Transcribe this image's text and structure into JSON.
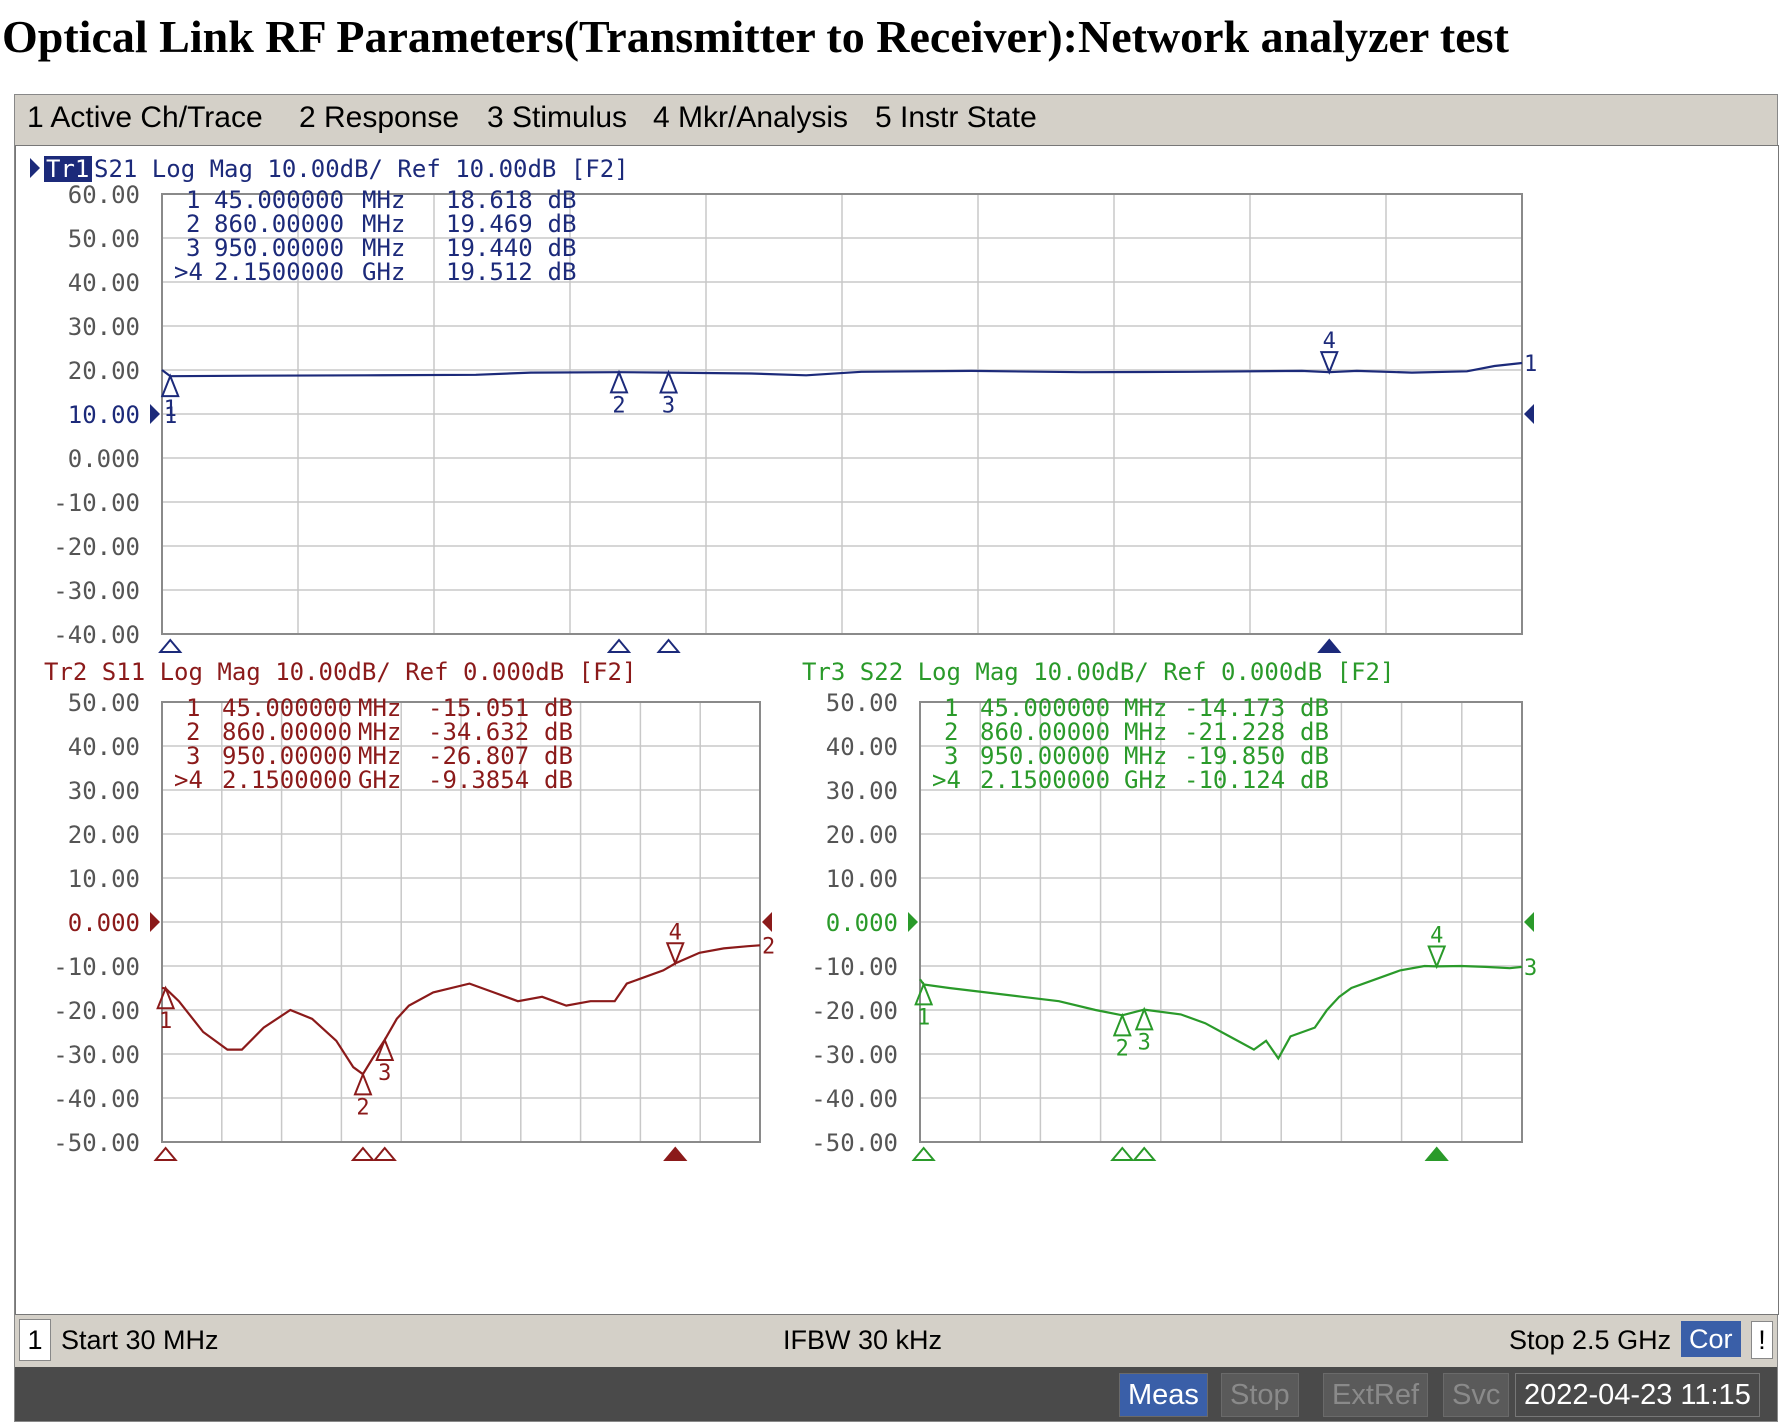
{
  "page_title": "Optical Link RF Parameters(Transmitter to Receiver):Network analyzer test",
  "menu": [
    "1 Active Ch/Trace",
    "2 Response",
    "3 Stimulus",
    "4 Mkr/Analysis",
    "5 Instr State"
  ],
  "status": {
    "channel": "1",
    "start": "Start 30 MHz",
    "ifbw": "IFBW 30 kHz",
    "stop": "Stop 2.5 GHz",
    "cor": "Cor",
    "excl": "!"
  },
  "bottom_bar": {
    "meas": "Meas",
    "stop": "Stop",
    "extref": "ExtRef",
    "svc": "Svc",
    "datetime": "2022-04-23 11:15"
  },
  "colors": {
    "tr1": "#1c2a7a",
    "tr2": "#8b1a1a",
    "tr3": "#2a9a2a",
    "grid": "#c8c8c8"
  },
  "chart_data": [
    {
      "type": "line",
      "trace_label": "Tr1",
      "header": " S21  Log Mag 10.00dB/ Ref 10.00dB [F2]",
      "x_range_mhz": [
        30,
        2500
      ],
      "ylim": [
        -40,
        60
      ],
      "y_ticks": [
        "60.00",
        "50.00",
        "40.00",
        "30.00",
        "20.00",
        "10.00",
        "0.000",
        "-10.00",
        "-20.00",
        "-30.00",
        "-40.00"
      ],
      "ref_level": 10,
      "ref_label": "1",
      "end_label": "1",
      "markers": [
        {
          "id": "1",
          "label": "1",
          "freq_mhz": 45,
          "freq": "45.000000 MHz",
          "value_db": 18.618,
          "value": "18.618 dB"
        },
        {
          "id": "2",
          "label": "2",
          "freq_mhz": 860,
          "freq": "860.00000 MHz",
          "value_db": 19.469,
          "value": "19.469 dB"
        },
        {
          "id": "3",
          "label": "3",
          "freq_mhz": 950,
          "freq": "950.00000 MHz",
          "value_db": 19.44,
          "value": "19.440 dB"
        },
        {
          "id": "4",
          "label": ">4",
          "freq_mhz": 2150,
          "freq": "2.1500000 GHz",
          "value_db": 19.512,
          "value": "19.512 dB"
        }
      ],
      "active_marker": "4",
      "series": [
        {
          "x": [
            30,
            45,
            200,
            400,
            600,
            700,
            860,
            950,
            1100,
            1200,
            1300,
            1500,
            1700,
            1900,
            2100,
            2150,
            2200,
            2300,
            2400,
            2450,
            2500
          ],
          "y": [
            20.0,
            18.6,
            18.7,
            18.8,
            18.9,
            19.4,
            19.5,
            19.4,
            19.2,
            18.8,
            19.6,
            19.8,
            19.5,
            19.6,
            19.8,
            19.5,
            19.8,
            19.4,
            19.7,
            20.9,
            21.6
          ]
        }
      ]
    },
    {
      "type": "line",
      "trace_label": "Tr2",
      "header": "Tr2  S11  Log Mag 10.00dB/ Ref 0.000dB [F2]",
      "x_range_mhz": [
        30,
        2500
      ],
      "ylim": [
        -50,
        50
      ],
      "y_ticks": [
        "50.00",
        "40.00",
        "30.00",
        "20.00",
        "10.00",
        "0.000",
        "-10.00",
        "-20.00",
        "-30.00",
        "-40.00",
        "-50.00"
      ],
      "ref_level": 0,
      "ref_label": "0.000",
      "end_label": "2",
      "markers": [
        {
          "id": "1",
          "label": "1",
          "freq_mhz": 45,
          "freq": "45.000000 MHz",
          "value_db": -15.051,
          "value": "-15.051 dB"
        },
        {
          "id": "2",
          "label": "2",
          "freq_mhz": 860,
          "freq": "860.00000 MHz",
          "value_db": -34.632,
          "value": "-34.632 dB"
        },
        {
          "id": "3",
          "label": "3",
          "freq_mhz": 950,
          "freq": "950.00000 MHz",
          "value_db": -26.807,
          "value": "-26.807 dB"
        },
        {
          "id": "4",
          "label": ">4",
          "freq_mhz": 2150,
          "freq": "2.1500000 GHz",
          "value_db": -9.3854,
          "value": "-9.3854 dB"
        }
      ],
      "active_marker": "4",
      "series": [
        {
          "x": [
            30,
            45,
            100,
            200,
            300,
            360,
            450,
            560,
            650,
            750,
            820,
            860,
            900,
            950,
            1000,
            1050,
            1150,
            1300,
            1400,
            1500,
            1600,
            1700,
            1800,
            1900,
            1950,
            2000,
            2100,
            2150,
            2250,
            2350,
            2450,
            2500
          ],
          "y": [
            -15,
            -15.1,
            -18,
            -25,
            -29,
            -29,
            -24,
            -20,
            -22,
            -27,
            -33,
            -34.6,
            -31,
            -26.8,
            -22,
            -19,
            -16,
            -14,
            -16,
            -18,
            -17,
            -19,
            -18,
            -18,
            -14,
            -13,
            -11,
            -9.4,
            -7,
            -6,
            -5.5,
            -5.3
          ]
        }
      ]
    },
    {
      "type": "line",
      "trace_label": "Tr3",
      "header": "Tr3  S22  Log Mag 10.00dB/ Ref 0.000dB [F2]",
      "x_range_mhz": [
        30,
        2500
      ],
      "ylim": [
        -50,
        50
      ],
      "y_ticks": [
        "50.00",
        "40.00",
        "30.00",
        "20.00",
        "10.00",
        "0.000",
        "-10.00",
        "-20.00",
        "-30.00",
        "-40.00",
        "-50.00"
      ],
      "ref_level": 0,
      "ref_label": "0.000",
      "end_label": "3",
      "markers": [
        {
          "id": "1",
          "label": "1",
          "freq_mhz": 45,
          "freq": "45.000000 MHz",
          "value_db": -14.173,
          "value": "-14.173 dB"
        },
        {
          "id": "2",
          "label": "2",
          "freq_mhz": 860,
          "freq": "860.00000 MHz",
          "value_db": -21.228,
          "value": "-21.228 dB"
        },
        {
          "id": "3",
          "label": "3",
          "freq_mhz": 950,
          "freq": "950.00000 MHz",
          "value_db": -19.85,
          "value": "-19.850 dB"
        },
        {
          "id": "4",
          "label": ">4",
          "freq_mhz": 2150,
          "freq": "2.1500000 GHz",
          "value_db": -10.124,
          "value": "-10.124 dB"
        }
      ],
      "active_marker": "4",
      "series": [
        {
          "x": [
            30,
            45,
            150,
            300,
            450,
            600,
            750,
            860,
            950,
            1100,
            1200,
            1300,
            1400,
            1450,
            1500,
            1550,
            1650,
            1700,
            1750,
            1800,
            1900,
            2000,
            2100,
            2150,
            2250,
            2350,
            2450,
            2500
          ],
          "y": [
            -13,
            -14.2,
            -15,
            -16,
            -17,
            -18,
            -20,
            -21.2,
            -19.9,
            -21,
            -23,
            -26,
            -29,
            -27,
            -31,
            -26,
            -24,
            -20,
            -17,
            -15,
            -13,
            -11,
            -10,
            -10.1,
            -10,
            -10.2,
            -10.5,
            -10.2
          ]
        }
      ]
    }
  ]
}
